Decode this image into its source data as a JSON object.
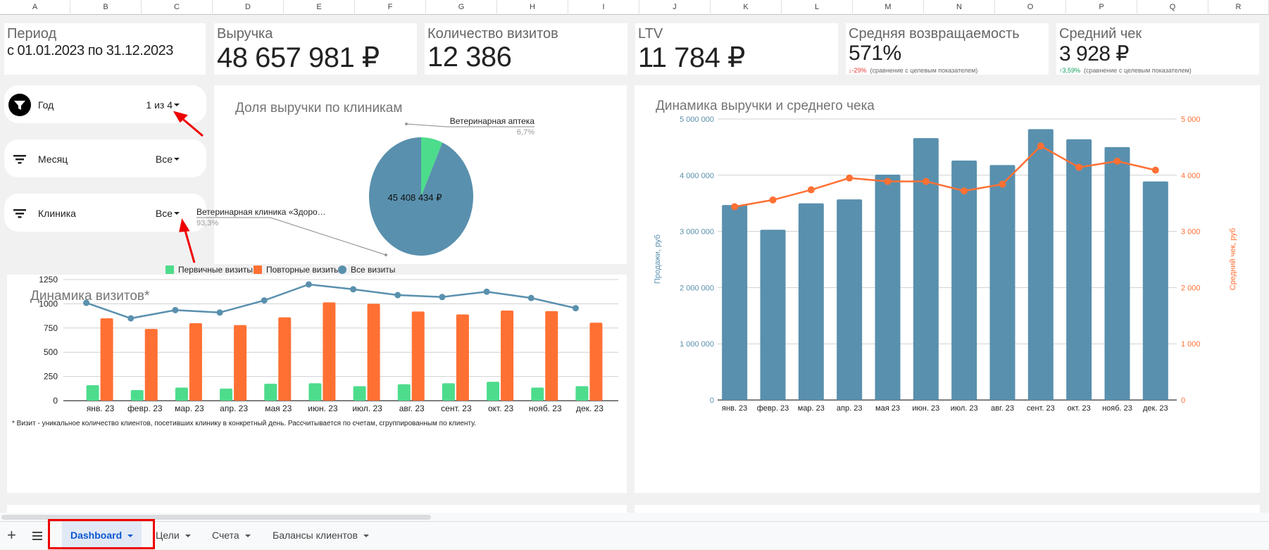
{
  "columns": [
    "A",
    "B",
    "C",
    "D",
    "E",
    "F",
    "G",
    "H",
    "I",
    "J",
    "K",
    "L",
    "M",
    "N",
    "O",
    "P",
    "Q",
    "R"
  ],
  "kpis": {
    "period": {
      "label": "Период",
      "value": "с 01.01.2023 по 31.12.2023"
    },
    "revenue": {
      "label": "Выручка",
      "value": "48 657 981 ₽"
    },
    "visits": {
      "label": "Количество визитов",
      "value": "12 386"
    },
    "ltv": {
      "label": "LTV",
      "value": "11 784 ₽"
    },
    "retention": {
      "label": "Средняя возвращаемость",
      "value": "571%",
      "delta": "↓-29%",
      "delta_note": "(сравнение с целевым показателем)"
    },
    "avg_check": {
      "label": "Средний чек",
      "value": "3 928 ₽",
      "delta": "↑3,59%",
      "delta_note": "(сравнение с целевым показателем)"
    }
  },
  "filters": [
    {
      "label": "Год",
      "value": "1 из 4",
      "icon": "filter-active-icon"
    },
    {
      "label": "Месяц",
      "value": "Все",
      "icon": "filter-icon"
    },
    {
      "label": "Клиника",
      "value": "Все",
      "icon": "filter-icon"
    }
  ],
  "colors": {
    "teal": "#5990ae",
    "green": "#4ddc8c",
    "orange": "#ff7033",
    "accent_blue": "#0b57d0"
  },
  "sheet_tabs": [
    {
      "label": "Dashboard",
      "active": true
    },
    {
      "label": "Цели",
      "active": false
    },
    {
      "label": "Счета",
      "active": false
    },
    {
      "label": "Балансы клиентов",
      "active": false
    }
  ],
  "chart_data": [
    {
      "type": "pie",
      "title": "Доля выручки по клиникам",
      "slices": [
        {
          "label": "Ветеринарная аптека",
          "percent_label": "6,7%",
          "value": 6.7
        },
        {
          "label": "Ветеринарная клиника «Здоро…",
          "percent_label": "93,3%",
          "value": 93.3
        }
      ],
      "center_label": "45 408 434 ₽"
    },
    {
      "type": "bar",
      "title": "Динамика визитов*",
      "categories": [
        "янв. 23",
        "февр. 23",
        "мар. 23",
        "апр. 23",
        "мая 23",
        "июн. 23",
        "июл. 23",
        "авг. 23",
        "сент. 23",
        "окт. 23",
        "нояб. 23",
        "дек. 23"
      ],
      "series": [
        {
          "name": "Первичные визиты",
          "type": "bar",
          "values": [
            160,
            110,
            135,
            125,
            175,
            180,
            150,
            170,
            180,
            195,
            135,
            150
          ]
        },
        {
          "name": "Повторные визиты",
          "type": "bar",
          "values": [
            850,
            740,
            800,
            780,
            860,
            1015,
            1000,
            920,
            890,
            930,
            925,
            805
          ]
        },
        {
          "name": "Все визиты",
          "type": "line",
          "values": [
            1010,
            850,
            935,
            910,
            1035,
            1200,
            1150,
            1090,
            1070,
            1125,
            1060,
            955
          ]
        }
      ],
      "yticks": [
        "0",
        "250",
        "500",
        "750",
        "1000",
        "1250"
      ],
      "ylim": [
        0,
        1250
      ],
      "legend": "top",
      "footnote": "* Визит - уникальное количество клиентов, посетивших клинику в конкретный день. Рассчитывается по счетам, сгруппированным по клиенту."
    },
    {
      "type": "bar",
      "title": "Динамика выручки и среднего чека",
      "categories": [
        "янв. 23",
        "февр. 23",
        "мар. 23",
        "апр. 23",
        "мая 23",
        "июн. 23",
        "июл. 23",
        "авг. 23",
        "сент. 23",
        "окт. 23",
        "нояб. 23",
        "дек. 23"
      ],
      "series": [
        {
          "name": "Продажи, руб",
          "type": "bar",
          "axis": "left",
          "values": [
            3470000,
            3030000,
            3500000,
            3570000,
            4010000,
            4660000,
            4260000,
            4180000,
            4820000,
            4640000,
            4500000,
            3890000
          ]
        },
        {
          "name": "Средний чек, руб",
          "type": "line",
          "axis": "right",
          "values": [
            3440,
            3560,
            3740,
            3950,
            3890,
            3890,
            3720,
            3840,
            4520,
            4140,
            4250,
            4090
          ]
        }
      ],
      "ylabel": "Продажи, руб",
      "y2label": "Средний чек, руб",
      "yticks": [
        "0",
        "1 000 000",
        "2 000 000",
        "3 000 000",
        "4 000 000",
        "5 000 000"
      ],
      "y2ticks": [
        "0",
        "1 000",
        "2 000",
        "3 000",
        "4 000",
        "5 000"
      ],
      "ylim": [
        0,
        5000000
      ],
      "y2lim": [
        0,
        5000
      ]
    }
  ]
}
